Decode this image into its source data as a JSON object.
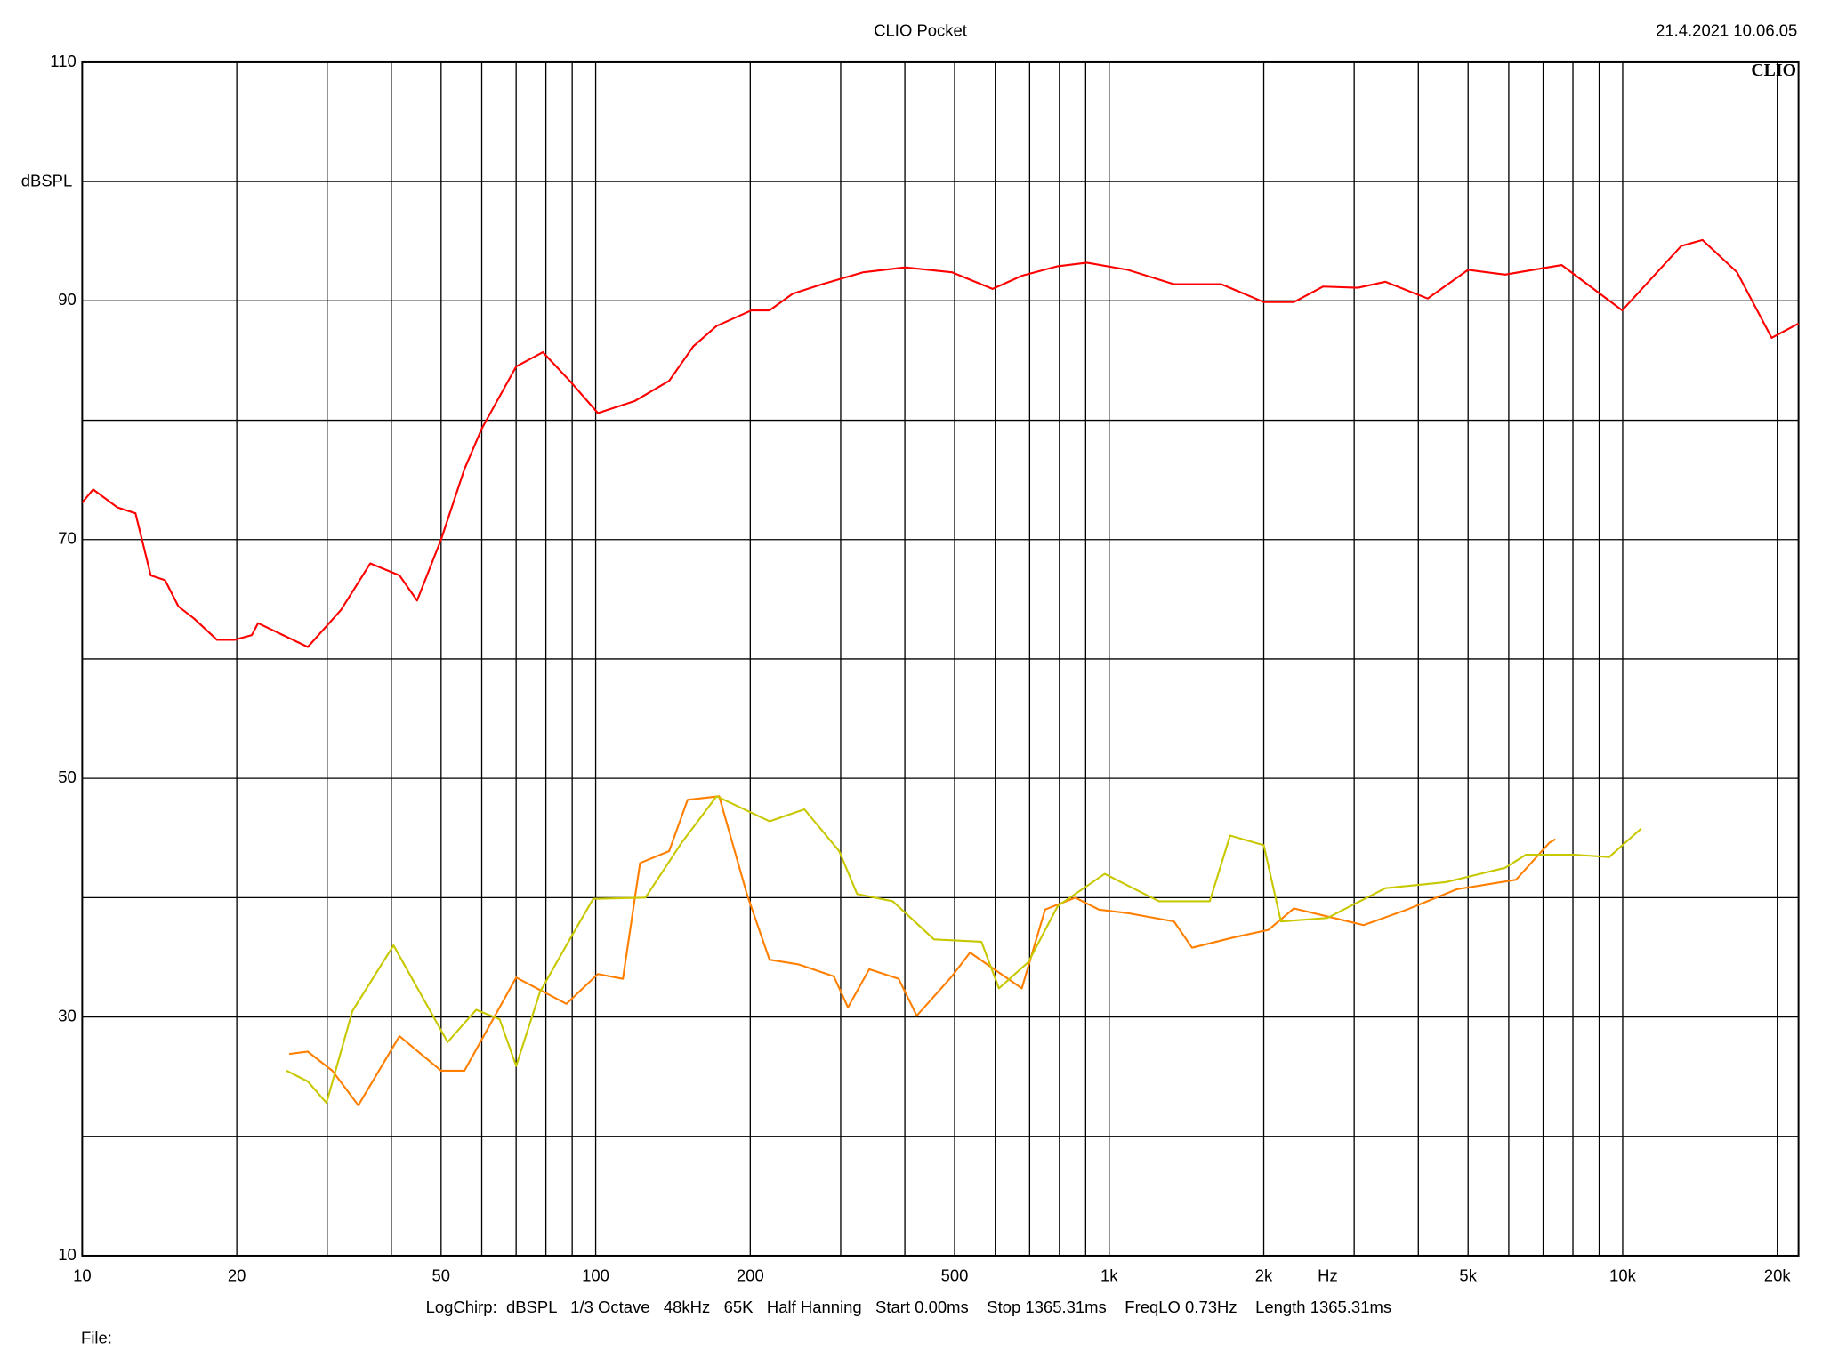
{
  "chart_data": {
    "type": "line",
    "title": "CLIO Pocket",
    "timestamp": "21.4.2021 10.06.05",
    "logo": "CLIO",
    "y_label": "dBSPL",
    "x_label": "Hz",
    "footer": "LogChirp:  dBSPL   1/3 Octave   48kHz   65K   Half Hanning   Start 0.00ms    Stop 1365.31ms    FreqLO 0.73Hz    Length 1365.31ms",
    "file_label": "File:",
    "x_log": true,
    "grid": true,
    "xlim": [
      10,
      22000
    ],
    "ylim": [
      10,
      110
    ],
    "xticks": [
      10,
      20,
      50,
      100,
      200,
      500,
      {
        "value": 1000,
        "label": "1k"
      },
      {
        "value": 2000,
        "label": "2k"
      },
      {
        "value": 5000,
        "label": "5k"
      },
      {
        "value": 10000,
        "label": "10k"
      },
      {
        "value": 20000,
        "label": "20k"
      }
    ],
    "xminor": [
      30,
      40,
      60,
      70,
      80,
      90,
      300,
      400,
      600,
      700,
      800,
      900,
      3000,
      4000,
      6000,
      7000,
      8000,
      9000
    ],
    "yticks": [
      10,
      30,
      50,
      70,
      90,
      110
    ],
    "yminor": [
      20,
      40,
      60,
      80,
      100
    ],
    "series": [
      {
        "color": "#ff0000",
        "x": [
          10,
          10.5,
          11.7,
          12.7,
          13.6,
          14.5,
          15.4,
          16.5,
          18.3,
          19.8,
          21.4,
          22,
          27.5,
          31.9,
          36.4,
          41.5,
          44.9,
          50,
          55.5,
          60,
          70,
          78.9,
          89,
          101,
          119,
          139,
          155,
          172,
          201,
          218,
          242,
          276,
          332,
          400,
          494,
          593,
          676,
          794,
          905,
          1088,
          1337,
          1654,
          2000,
          2290,
          2610,
          3050,
          3450,
          4170,
          5000,
          5900,
          7610,
          9980,
          13000,
          14300,
          16700,
          19500,
          22000
        ],
        "values": [
          73.1,
          74.2,
          72.7,
          72.2,
          67.0,
          66.6,
          64.4,
          63.4,
          61.6,
          61.6,
          62.0,
          63.0,
          61.0,
          64.1,
          68.0,
          67.0,
          64.9,
          70.0,
          75.9,
          79.3,
          84.5,
          85.7,
          83.3,
          80.6,
          81.6,
          83.3,
          86.2,
          87.9,
          89.2,
          89.2,
          90.6,
          91.4,
          92.4,
          92.8,
          92.4,
          91.0,
          92.1,
          92.9,
          93.2,
          92.6,
          91.4,
          91.4,
          89.9,
          89.9,
          91.2,
          91.1,
          91.6,
          90.2,
          92.6,
          92.2,
          93.0,
          89.2,
          94.6,
          95.1,
          92.4,
          86.9,
          88.1
        ]
      },
      {
        "color": "#ff7f00",
        "x": [
          25.3,
          27.5,
          30.7,
          34.5,
          41.5,
          50,
          55.5,
          70,
          87.7,
          101,
          113,
          122,
          139,
          151,
          174,
          197,
          218,
          249,
          291,
          310,
          341,
          389,
          422,
          494,
          536,
          676,
          750,
          859,
          955,
          1088,
          1337,
          1450,
          1759,
          2042,
          2290,
          3130,
          3800,
          4750,
          6200,
          7200,
          7400
        ],
        "values": [
          26.9,
          27.1,
          25.5,
          22.6,
          28.4,
          25.5,
          25.5,
          33.3,
          31.1,
          33.6,
          33.2,
          42.9,
          43.9,
          48.2,
          48.5,
          40.3,
          34.8,
          34.4,
          33.4,
          30.8,
          34.0,
          33.2,
          30.1,
          33.4,
          35.4,
          32.4,
          39.0,
          40.0,
          39.0,
          38.7,
          38.0,
          35.8,
          36.7,
          37.3,
          39.1,
          37.7,
          39.0,
          40.7,
          41.5,
          44.6,
          44.9
        ]
      },
      {
        "color": "#c8c800",
        "x": [
          25,
          27.5,
          29.9,
          33.6,
          40.4,
          51.5,
          58.5,
          65,
          70,
          77.9,
          89,
          98.9,
          125,
          147,
          172,
          218,
          255,
          298,
          323,
          379,
          456,
          564,
          610,
          696,
          794,
          980,
          1250,
          1570,
          1720,
          2000,
          2160,
          2660,
          3450,
          4520,
          5900,
          6480,
          8050,
          9410,
          10870
        ],
        "values": [
          25.5,
          24.6,
          22.8,
          30.5,
          36.0,
          27.9,
          30.6,
          29.8,
          25.9,
          32.1,
          36.5,
          39.9,
          40.0,
          44.6,
          48.5,
          46.4,
          47.4,
          43.9,
          40.3,
          39.7,
          36.5,
          36.3,
          32.4,
          34.6,
          39.3,
          42.0,
          39.7,
          39.7,
          45.2,
          44.4,
          38.0,
          38.3,
          40.8,
          41.3,
          42.5,
          43.6,
          43.6,
          43.4,
          45.8
        ]
      }
    ]
  }
}
